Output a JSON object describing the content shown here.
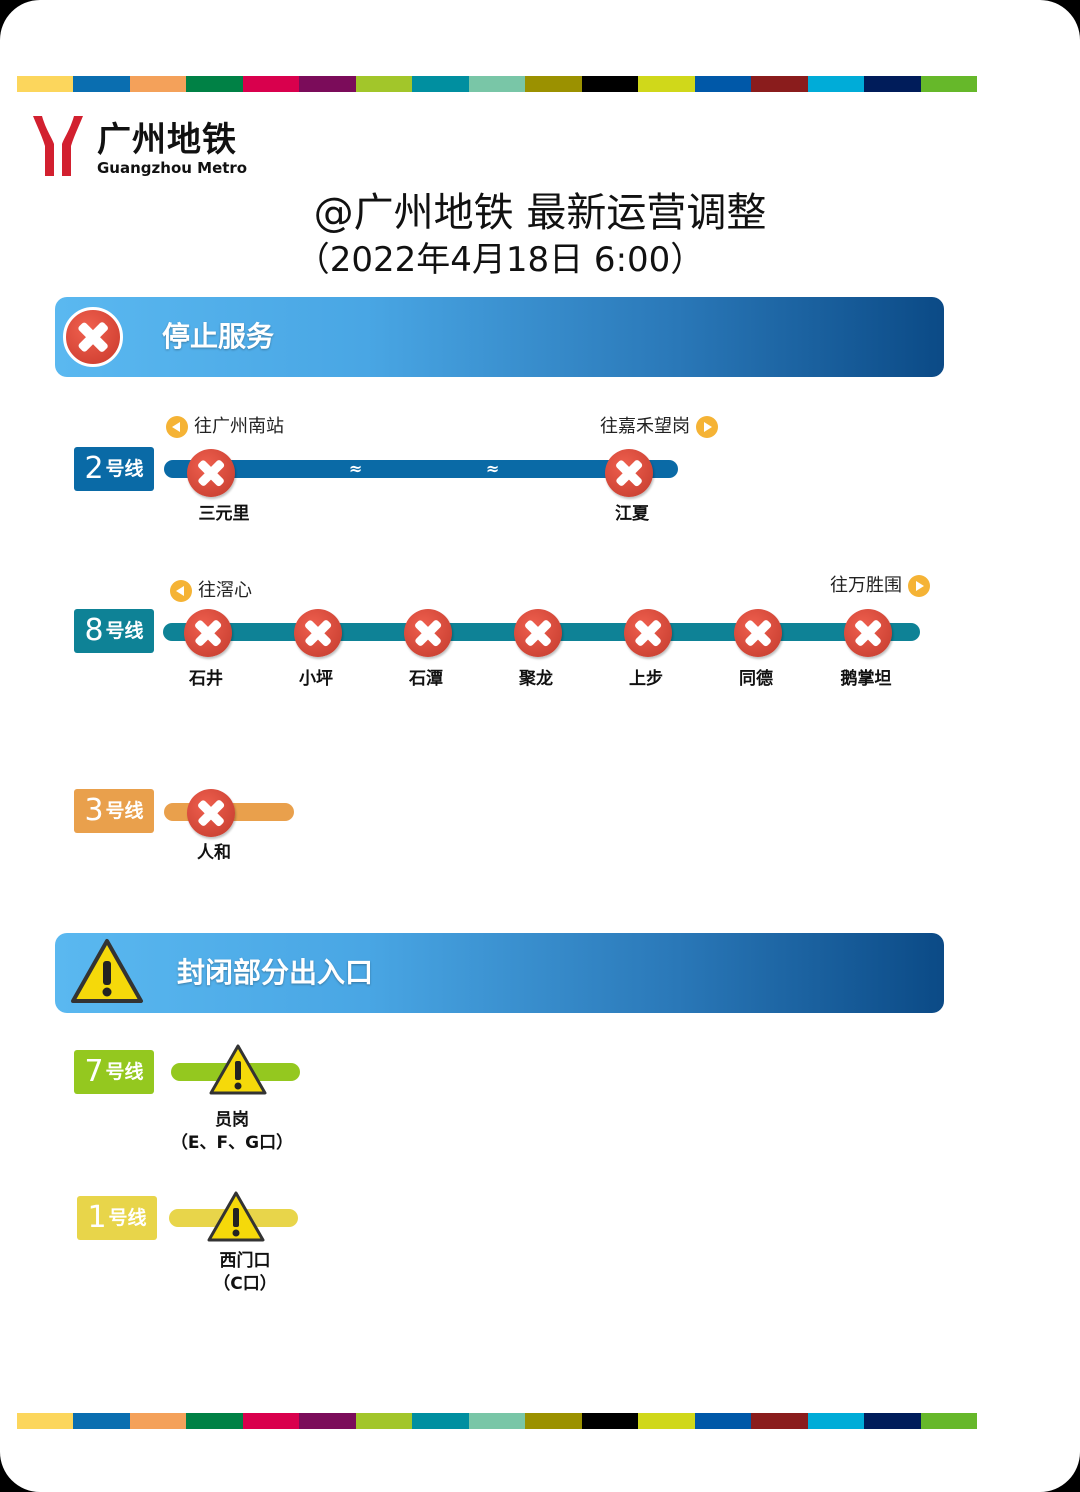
{
  "stripe_colors": [
    "#fcd65c",
    "#0a6eb0",
    "#f4a15a",
    "#008145",
    "#d9004d",
    "#7b0c5a",
    "#a2c62a",
    "#008fa0",
    "#79c6a7",
    "#9b9100",
    "#000000",
    "#d0d81a",
    "#0058a8",
    "#8a1c1c",
    "#00acd8",
    "#001c5a",
    "#66b82a"
  ],
  "logo": {
    "cn": "广州地铁",
    "en": "Guangzhou Metro",
    "color": "#d2202f"
  },
  "title": "@广州地铁 最新运营调整",
  "subtitle": "（2022年4月18日 6:00）",
  "sections": {
    "stop": {
      "label": "停止服务",
      "icon": "close-icon"
    },
    "closed": {
      "label": "封闭部分出入口",
      "icon": "warning-icon"
    }
  },
  "lines": {
    "l2": {
      "num": "2",
      "suffix": "号线",
      "color": "#0a6aa6",
      "dir_left": "往广州南站",
      "dir_right": "往嘉禾望岗",
      "gap": "≈",
      "stations": [
        "三元里",
        "江夏"
      ]
    },
    "l8": {
      "num": "8",
      "suffix": "号线",
      "color": "#0e8296",
      "dir_left": "往滘心",
      "dir_right": "往万胜围",
      "stations": [
        "石井",
        "小坪",
        "石潭",
        "聚龙",
        "上步",
        "同德",
        "鹅掌坦"
      ]
    },
    "l3": {
      "num": "3",
      "suffix": "号线",
      "color": "#e9a04c",
      "stations": [
        "人和"
      ]
    },
    "l7": {
      "num": "7",
      "suffix": "号线",
      "color": "#94c81f",
      "station": "员岗",
      "exits": "（E、F、G口）"
    },
    "l1": {
      "num": "1",
      "suffix": "号线",
      "color": "#e8d54a",
      "station": "西门口",
      "exits": "（C口）"
    }
  }
}
